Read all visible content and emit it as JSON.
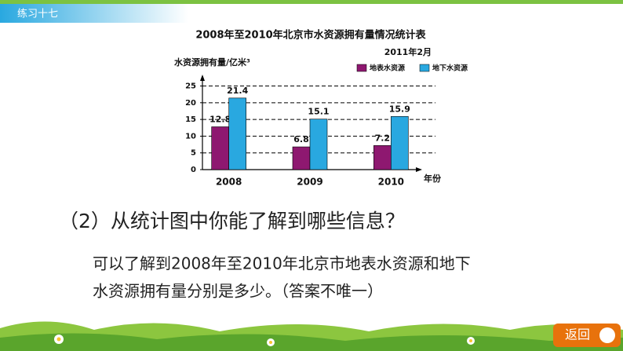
{
  "header": {
    "title": "练习十七"
  },
  "chart_data": {
    "type": "bar",
    "title": "2008年至2010年北京市水资源拥有量情况统计表",
    "subtitle": "2011年2月",
    "y_label": "水资源拥有量/亿米³",
    "x_label": "年份",
    "categories": [
      "2008",
      "2009",
      "2010"
    ],
    "series": [
      {
        "name": "地表水资源",
        "color": "#8e1870",
        "values": [
          12.8,
          6.8,
          7.2
        ]
      },
      {
        "name": "地下水资源",
        "color": "#29a8e0",
        "values": [
          21.4,
          15.1,
          15.9
        ]
      }
    ],
    "ylim": [
      0,
      27
    ],
    "yticks": [
      0,
      5,
      10,
      15,
      20,
      25
    ],
    "grid": true,
    "legend": "top-right"
  },
  "question": "（2）从统计图中你能了解到哪些信息？",
  "answer": [
    "可以了解到2008年至2010年北京市地表水资源和地下",
    "水资源拥有量分别是多少。（答案不唯一）"
  ],
  "button": "返回"
}
